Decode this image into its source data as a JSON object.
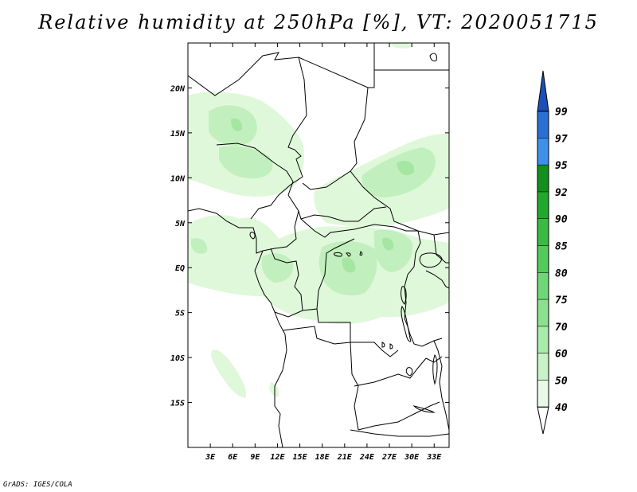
{
  "title": "Relative humidity at 250hPa [%], VT: 2020051715",
  "credit": "GrADS: IGES/COLA",
  "map": {
    "lon_range": [
      0,
      35
    ],
    "lat_range": [
      -20,
      25
    ],
    "x_ticks": [
      "3E",
      "6E",
      "9E",
      "12E",
      "15E",
      "18E",
      "21E",
      "24E",
      "27E",
      "30E",
      "33E"
    ],
    "y_ticks": [
      "20N",
      "15N",
      "10N",
      "5N",
      "EQ",
      "5S",
      "10S",
      "15S"
    ],
    "x_tick_values": [
      3,
      6,
      9,
      12,
      15,
      18,
      21,
      24,
      27,
      30,
      33
    ],
    "y_tick_values": [
      20,
      15,
      10,
      5,
      0,
      -5,
      -10,
      -15
    ]
  },
  "colorbar": {
    "levels": [
      "40",
      "50",
      "60",
      "70",
      "75",
      "80",
      "85",
      "90",
      "92",
      "95",
      "97",
      "99"
    ],
    "colors": [
      "#ffffff",
      "#e6fae6",
      "#c8f2c8",
      "#a8ebab",
      "#8ce191",
      "#6fd777",
      "#52ca5c",
      "#38bb42",
      "#22a82d",
      "#128f1d",
      "#3e90e8",
      "#2a6fd4",
      "#1a50b8"
    ]
  },
  "humidity_colors": {
    "light": "#dff8da",
    "medium": "#c2efbe",
    "strong": "#a5e6a3"
  }
}
